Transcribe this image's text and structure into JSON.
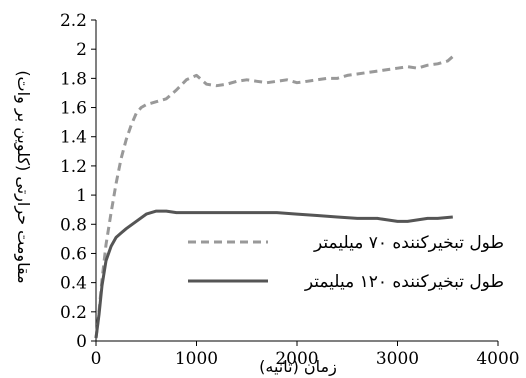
{
  "chart_data": {
    "type": "line",
    "xlabel": "زمان (ثانیه)",
    "ylabel": "مقاومت حرارتی (کلوین بر وات)",
    "xlim": [
      0,
      4000
    ],
    "ylim": [
      0,
      2.2
    ],
    "xticks": [
      0,
      1000,
      2000,
      3000,
      4000
    ],
    "yticks": [
      0,
      0.2,
      0.4,
      0.6,
      0.8,
      1,
      1.2,
      1.4,
      1.6,
      1.8,
      2,
      2.2
    ],
    "x_tick_labels": [
      "0",
      "1000",
      "2000",
      "3000",
      "4000"
    ],
    "y_tick_labels": [
      "0",
      "0.2",
      "0.4",
      "0.6",
      "0.8",
      "1",
      "1.2",
      "1.4",
      "1.6",
      "1.8",
      "2",
      "2.2"
    ],
    "grid": false,
    "legend_position": "right",
    "series": [
      {
        "name": "طول تبخیرکننده ۷۰ میلیمتر",
        "color": "#999999",
        "style": "dashed",
        "points": [
          [
            0,
            0.02
          ],
          [
            30,
            0.2
          ],
          [
            60,
            0.42
          ],
          [
            100,
            0.66
          ],
          [
            150,
            0.88
          ],
          [
            200,
            1.08
          ],
          [
            250,
            1.25
          ],
          [
            300,
            1.38
          ],
          [
            350,
            1.48
          ],
          [
            400,
            1.56
          ],
          [
            450,
            1.6
          ],
          [
            500,
            1.62
          ],
          [
            600,
            1.64
          ],
          [
            700,
            1.66
          ],
          [
            800,
            1.72
          ],
          [
            900,
            1.79
          ],
          [
            1000,
            1.82
          ],
          [
            1050,
            1.79
          ],
          [
            1100,
            1.76
          ],
          [
            1200,
            1.75
          ],
          [
            1300,
            1.76
          ],
          [
            1400,
            1.78
          ],
          [
            1500,
            1.79
          ],
          [
            1600,
            1.78
          ],
          [
            1700,
            1.77
          ],
          [
            1800,
            1.78
          ],
          [
            1900,
            1.79
          ],
          [
            2000,
            1.77
          ],
          [
            2100,
            1.78
          ],
          [
            2200,
            1.79
          ],
          [
            2300,
            1.8
          ],
          [
            2400,
            1.8
          ],
          [
            2500,
            1.82
          ],
          [
            2600,
            1.83
          ],
          [
            2700,
            1.84
          ],
          [
            2800,
            1.85
          ],
          [
            2900,
            1.86
          ],
          [
            3000,
            1.87
          ],
          [
            3100,
            1.88
          ],
          [
            3200,
            1.87
          ],
          [
            3300,
            1.89
          ],
          [
            3400,
            1.9
          ],
          [
            3500,
            1.92
          ],
          [
            3550,
            1.95
          ]
        ]
      },
      {
        "name": "طول تبخیرکننده ۱۲۰ میلیمتر",
        "color": "#555555",
        "style": "solid",
        "points": [
          [
            0,
            0.02
          ],
          [
            30,
            0.18
          ],
          [
            60,
            0.38
          ],
          [
            100,
            0.55
          ],
          [
            150,
            0.65
          ],
          [
            200,
            0.71
          ],
          [
            250,
            0.74
          ],
          [
            300,
            0.77
          ],
          [
            400,
            0.82
          ],
          [
            500,
            0.87
          ],
          [
            600,
            0.89
          ],
          [
            700,
            0.89
          ],
          [
            800,
            0.88
          ],
          [
            900,
            0.88
          ],
          [
            1000,
            0.88
          ],
          [
            1200,
            0.88
          ],
          [
            1400,
            0.88
          ],
          [
            1600,
            0.88
          ],
          [
            1800,
            0.88
          ],
          [
            2000,
            0.87
          ],
          [
            2200,
            0.86
          ],
          [
            2400,
            0.85
          ],
          [
            2600,
            0.84
          ],
          [
            2800,
            0.84
          ],
          [
            2900,
            0.83
          ],
          [
            3000,
            0.82
          ],
          [
            3100,
            0.82
          ],
          [
            3200,
            0.83
          ],
          [
            3300,
            0.84
          ],
          [
            3400,
            0.84
          ],
          [
            3550,
            0.85
          ]
        ]
      }
    ]
  }
}
